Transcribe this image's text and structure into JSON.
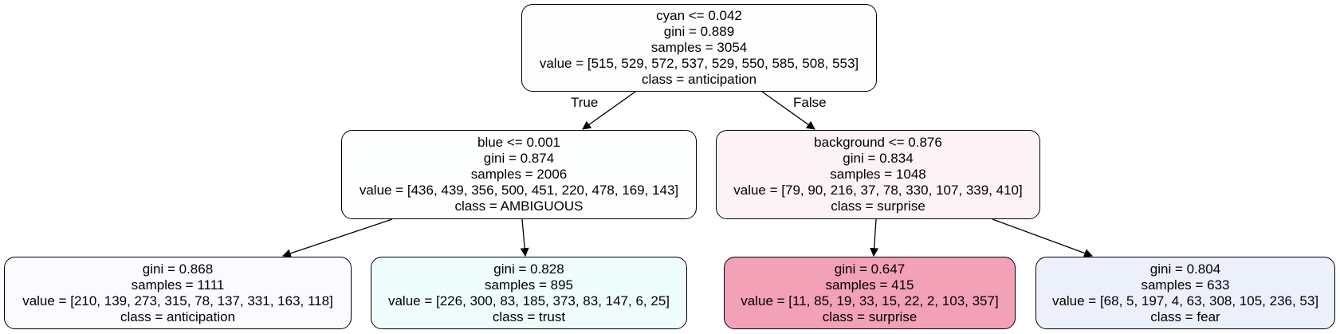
{
  "edge_labels": {
    "true_label": "True",
    "false_label": "False"
  },
  "nodes": {
    "root": {
      "split": "cyan <= 0.042",
      "gini": "gini = 0.889",
      "samples": "samples = 3054",
      "value": "value = [515, 529, 572, 537, 529, 550, 585, 508, 553]",
      "class": "class = anticipation",
      "fill": "#fefdfe"
    },
    "left": {
      "split": "blue <= 0.001",
      "gini": "gini = 0.874",
      "samples": "samples = 2006",
      "value": "value = [436, 439, 356, 500, 451, 220, 478, 169, 143]",
      "class": "class = AMBIGUOUS",
      "fill": "#fcfffe"
    },
    "right": {
      "split": "background <= 0.876",
      "gini": "gini = 0.834",
      "samples": "samples = 1048",
      "value": "value = [79, 90, 216, 37, 78, 330, 107, 339, 410]",
      "class": "class = surprise",
      "fill": "#fdf3f6"
    },
    "ll": {
      "gini": "gini = 0.868",
      "samples": "samples = 1111",
      "value": "value = [210, 139, 273, 315, 78, 137, 331, 163, 118]",
      "class": "class = anticipation",
      "fill": "#fbfbff"
    },
    "lr": {
      "gini": "gini = 0.828",
      "samples": "samples = 895",
      "value": "value = [226, 300, 83, 185, 373, 83, 147, 6, 25]",
      "class": "class = trust",
      "fill": "#effcfc"
    },
    "rl": {
      "gini": "gini = 0.647",
      "samples": "samples = 415",
      "value": "value = [11, 85, 19, 33, 15, 22, 2, 103, 357]",
      "class": "class = surprise",
      "fill": "#f2a1b6"
    },
    "rr": {
      "gini": "gini = 0.804",
      "samples": "samples = 633",
      "value": "value = [68, 5, 197, 4, 63, 308, 105, 236, 53]",
      "class": "class = fear",
      "fill": "#ecf0fb"
    }
  }
}
